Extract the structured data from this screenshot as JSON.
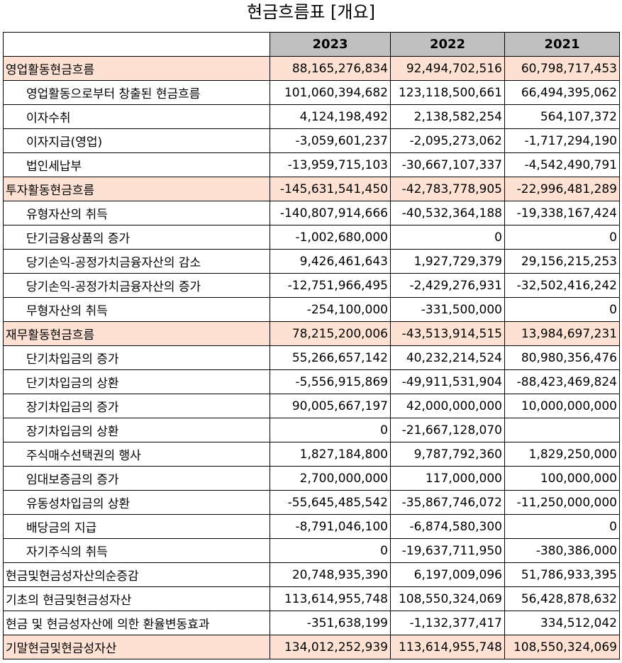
{
  "title": "현금흐름표 [개요]",
  "columns": [
    "2023",
    "2022",
    "2021"
  ],
  "rows": [
    {
      "label": "영업활동현금흐름",
      "indent": false,
      "highlight": true,
      "values": [
        "88,165,276,834",
        "92,494,702,516",
        "60,798,717,453"
      ]
    },
    {
      "label": "영업활동으로부터 창출된 현금흐름",
      "indent": true,
      "highlight": false,
      "values": [
        "101,060,394,682",
        "123,118,500,661",
        "66,494,395,062"
      ]
    },
    {
      "label": "이자수취",
      "indent": true,
      "highlight": false,
      "values": [
        "4,124,198,492",
        "2,138,582,254",
        "564,107,372"
      ]
    },
    {
      "label": "이자지급(영업)",
      "indent": true,
      "highlight": false,
      "values": [
        "-3,059,601,237",
        "-2,095,273,062",
        "-1,717,294,190"
      ]
    },
    {
      "label": "법인세납부",
      "indent": true,
      "highlight": false,
      "values": [
        "-13,959,715,103",
        "-30,667,107,337",
        "-4,542,490,791"
      ]
    },
    {
      "label": "투자활동현금흐름",
      "indent": false,
      "highlight": true,
      "values": [
        "-145,631,541,450",
        "-42,783,778,905",
        "-22,996,481,289"
      ]
    },
    {
      "label": "유형자산의 취득",
      "indent": true,
      "highlight": false,
      "values": [
        "-140,807,914,666",
        "-40,532,364,188",
        "-19,338,167,424"
      ]
    },
    {
      "label": "단기금융상품의 증가",
      "indent": true,
      "highlight": false,
      "values": [
        "-1,002,680,000",
        "0",
        "0"
      ]
    },
    {
      "label": "당기손익-공정가치금융자산의 감소",
      "indent": true,
      "highlight": false,
      "values": [
        "9,426,461,643",
        "1,927,729,379",
        "29,156,215,253"
      ]
    },
    {
      "label": "당기손익-공정가치금융자산의 증가",
      "indent": true,
      "highlight": false,
      "values": [
        "-12,751,966,495",
        "-2,429,276,931",
        "-32,502,416,242"
      ]
    },
    {
      "label": "무형자산의 취득",
      "indent": true,
      "highlight": false,
      "values": [
        "-254,100,000",
        "-331,500,000",
        "0"
      ]
    },
    {
      "label": "재무활동현금흐름",
      "indent": false,
      "highlight": true,
      "values": [
        "78,215,200,006",
        "-43,513,914,515",
        "13,984,697,231"
      ]
    },
    {
      "label": "단기차입금의 증가",
      "indent": true,
      "highlight": false,
      "values": [
        "55,266,657,142",
        "40,232,214,524",
        "80,980,356,476"
      ]
    },
    {
      "label": "단기차입금의 상환",
      "indent": true,
      "highlight": false,
      "values": [
        "-5,556,915,869",
        "-49,911,531,904",
        "-88,423,469,824"
      ]
    },
    {
      "label": "장기차입금의 증가",
      "indent": true,
      "highlight": false,
      "values": [
        "90,005,667,197",
        "42,000,000,000",
        "10,000,000,000"
      ]
    },
    {
      "label": "장기차입금의 상환",
      "indent": true,
      "highlight": false,
      "values": [
        "0",
        "-21,667,128,070",
        ""
      ]
    },
    {
      "label": "주식매수선택권의 행사",
      "indent": true,
      "highlight": false,
      "values": [
        "1,827,184,800",
        "9,787,792,360",
        "1,829,250,000"
      ]
    },
    {
      "label": "임대보증금의 증가",
      "indent": true,
      "highlight": false,
      "values": [
        "2,700,000,000",
        "117,000,000",
        "100,000,000"
      ]
    },
    {
      "label": "유동성차입금의 상환",
      "indent": true,
      "highlight": false,
      "values": [
        "-55,645,485,542",
        "-35,867,746,072",
        "-11,250,000,000"
      ]
    },
    {
      "label": "배당금의 지급",
      "indent": true,
      "highlight": false,
      "values": [
        "-8,791,046,100",
        "-6,874,580,300",
        "0"
      ]
    },
    {
      "label": "자기주식의 취득",
      "indent": true,
      "highlight": false,
      "values": [
        "0",
        "-19,637,711,950",
        "-380,386,000"
      ]
    },
    {
      "label": "현금및현금성자산의순증감",
      "indent": false,
      "highlight": false,
      "values": [
        "20,748,935,390",
        "6,197,009,096",
        "51,786,933,395"
      ]
    },
    {
      "label": "기초의 현금및현금성자산",
      "indent": false,
      "highlight": false,
      "values": [
        "113,614,955,748",
        "108,550,324,069",
        "56,428,878,632"
      ]
    },
    {
      "label": "현금 및 현금성자산에 의한 환율변동효과",
      "indent": false,
      "highlight": false,
      "values": [
        "-351,638,199",
        "-1,132,377,417",
        "334,512,042"
      ]
    },
    {
      "label": "기말현금및현금성자산",
      "indent": false,
      "highlight": true,
      "values": [
        "134,012,252,939",
        "113,614,955,748",
        "108,550,324,069"
      ]
    }
  ]
}
